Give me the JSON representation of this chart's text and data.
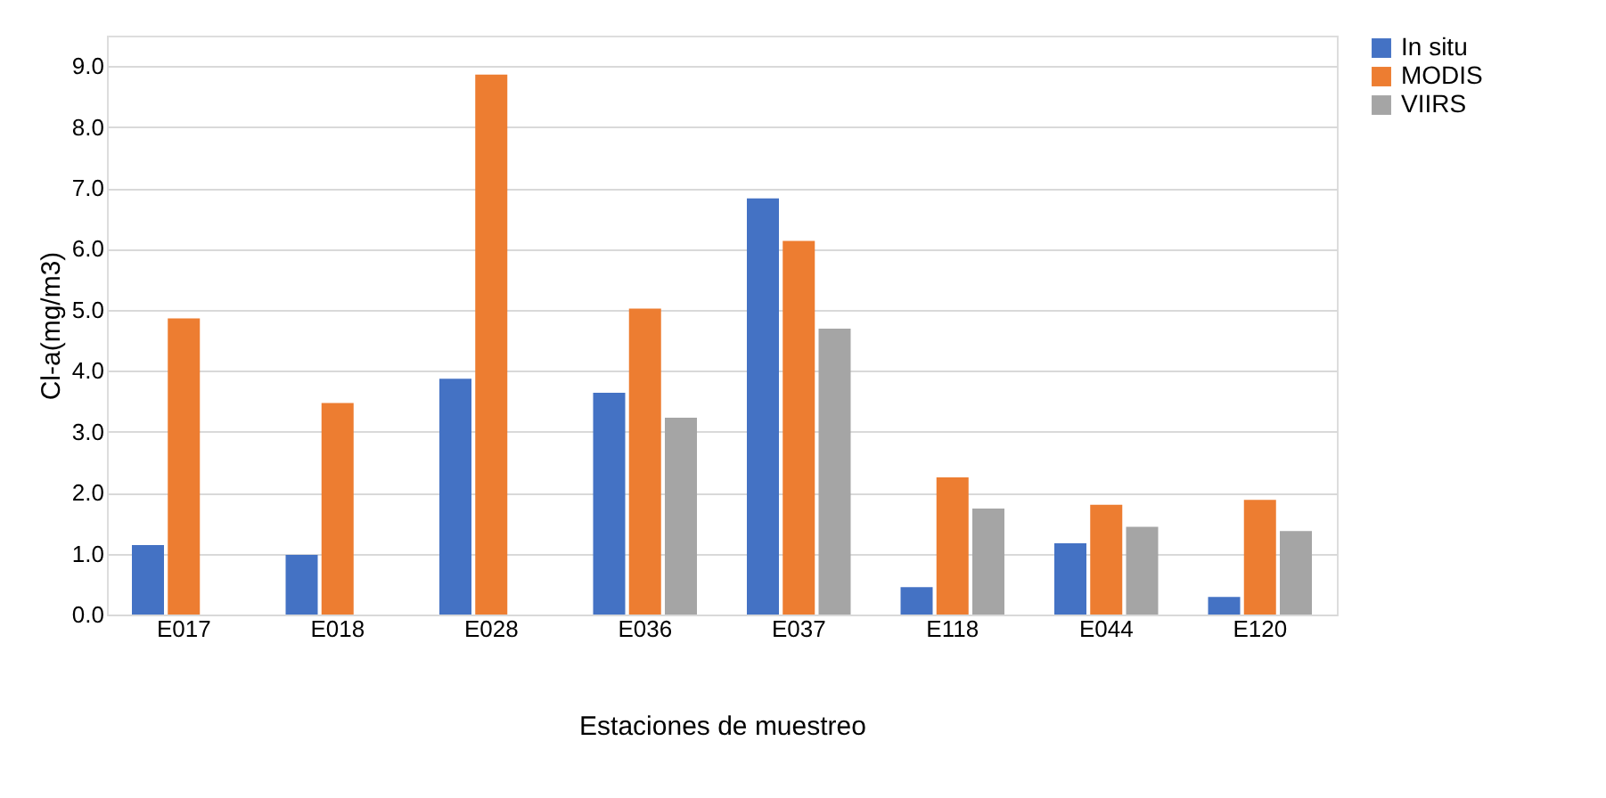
{
  "chart_data": {
    "type": "bar",
    "xlabel": "Estaciones de muestreo",
    "ylabel": "Cl-a(mg/m3)",
    "categories": [
      "E017",
      "E018",
      "E028",
      "E036",
      "E037",
      "E118",
      "E044",
      "E120"
    ],
    "series": [
      {
        "name": "In situ",
        "color": "#4472c4",
        "values": [
          1.14,
          0.98,
          3.87,
          3.64,
          6.83,
          0.45,
          1.17,
          0.29
        ]
      },
      {
        "name": "MODIS",
        "color": "#ed7d31",
        "values": [
          4.86,
          3.47,
          8.86,
          5.02,
          6.13,
          2.25,
          1.8,
          1.88
        ]
      },
      {
        "name": "VIIRS",
        "color": "#a5a5a5",
        "values": [
          null,
          null,
          null,
          3.23,
          4.69,
          1.74,
          1.44,
          1.37
        ]
      }
    ],
    "ylim": [
      0,
      9.5
    ],
    "yticks": [
      {
        "value": 0,
        "label": "0.0"
      },
      {
        "value": 1,
        "label": "1.0"
      },
      {
        "value": 2,
        "label": "2.0"
      },
      {
        "value": 3,
        "label": "3.0"
      },
      {
        "value": 4,
        "label": "4.0"
      },
      {
        "value": 5,
        "label": "5.0"
      },
      {
        "value": 6,
        "label": "6.0"
      },
      {
        "value": 7,
        "label": "7.0"
      },
      {
        "value": 8,
        "label": "8.0"
      },
      {
        "value": 9,
        "label": "9.0"
      }
    ],
    "grid": "y",
    "legend": "right"
  }
}
